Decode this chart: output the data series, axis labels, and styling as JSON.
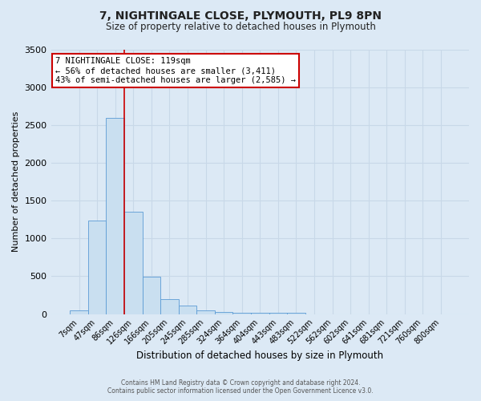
{
  "title": "7, NIGHTINGALE CLOSE, PLYMOUTH, PL9 8PN",
  "subtitle": "Size of property relative to detached houses in Plymouth",
  "xlabel": "Distribution of detached houses by size in Plymouth",
  "ylabel": "Number of detached properties",
  "bar_labels": [
    "7sqm",
    "47sqm",
    "86sqm",
    "126sqm",
    "166sqm",
    "205sqm",
    "245sqm",
    "285sqm",
    "324sqm",
    "364sqm",
    "404sqm",
    "443sqm",
    "483sqm",
    "522sqm",
    "562sqm",
    "602sqm",
    "641sqm",
    "681sqm",
    "721sqm",
    "760sqm",
    "800sqm"
  ],
  "bar_values": [
    50,
    1240,
    2590,
    1350,
    495,
    200,
    110,
    50,
    30,
    20,
    20,
    20,
    20,
    0,
    0,
    0,
    0,
    0,
    0,
    0,
    0
  ],
  "bar_color": "#c9dff0",
  "bar_edge_color": "#5b9bd5",
  "vline_color": "#cc0000",
  "vline_x": 3,
  "annotation_title": "7 NIGHTINGALE CLOSE: 119sqm",
  "annotation_line1": "← 56% of detached houses are smaller (3,411)",
  "annotation_line2": "43% of semi-detached houses are larger (2,585) →",
  "annotation_box_facecolor": "#ffffff",
  "annotation_box_edgecolor": "#cc0000",
  "ylim": [
    0,
    3500
  ],
  "yticks": [
    0,
    500,
    1000,
    1500,
    2000,
    2500,
    3000,
    3500
  ],
  "grid_color": "#c8d8e8",
  "background_color": "#dce9f5",
  "footer_line1": "Contains HM Land Registry data © Crown copyright and database right 2024.",
  "footer_line2": "Contains public sector information licensed under the Open Government Licence v3.0."
}
